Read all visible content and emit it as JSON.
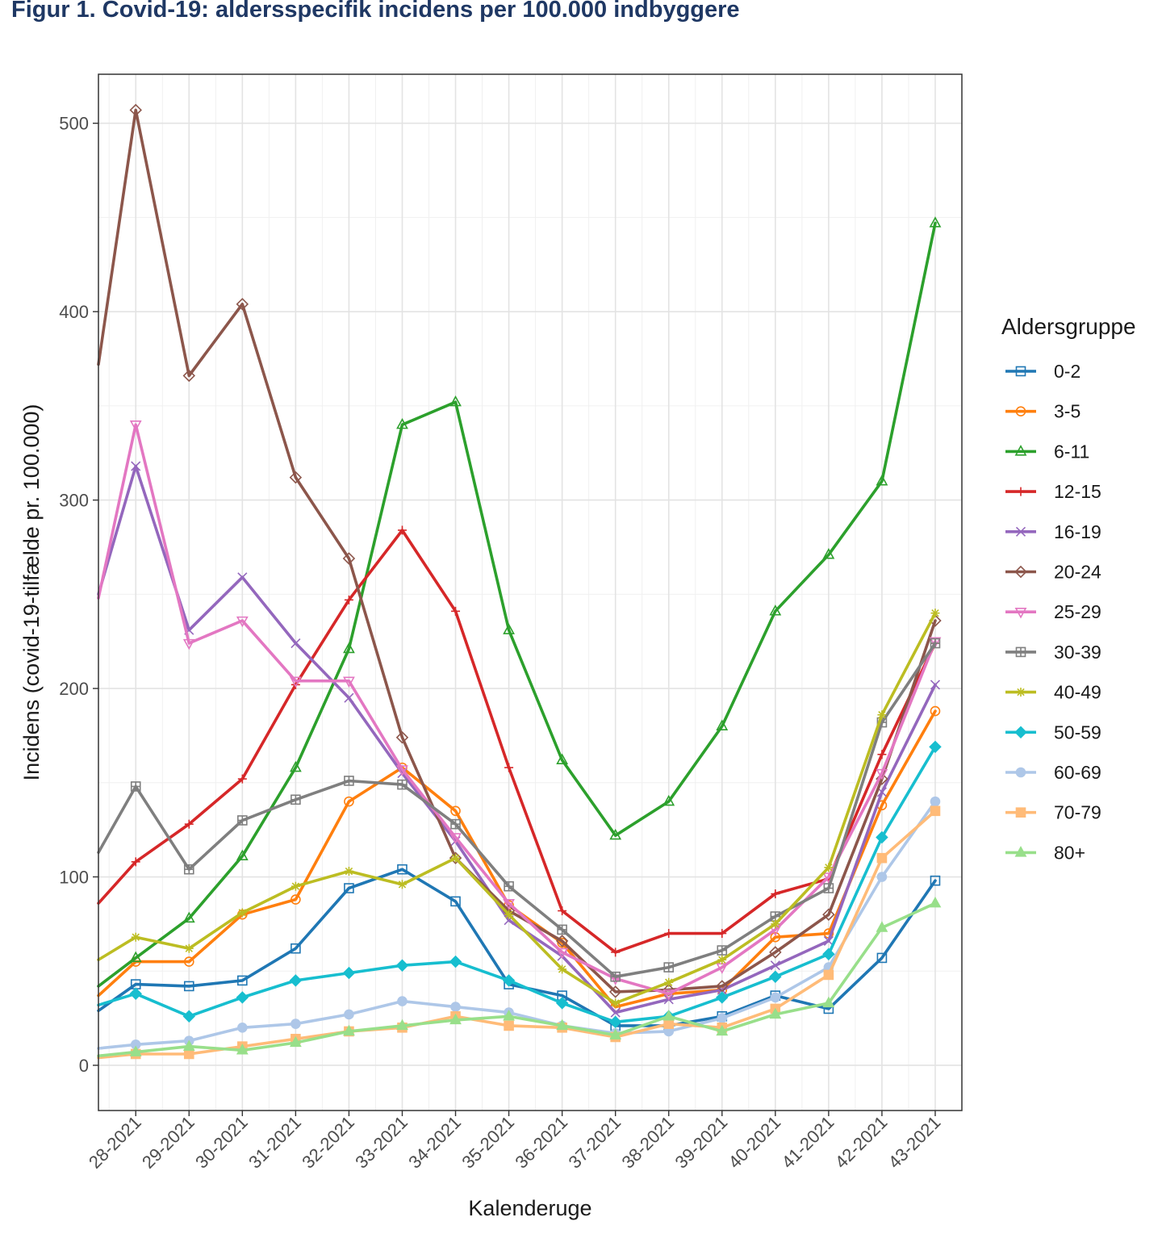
{
  "figure_title": "Figur 1. Covid-19: aldersspecifik incidens per 100.000 indbyggere",
  "chart_data": {
    "type": "line",
    "title": "Figur 1. Covid-19: aldersspecifik incidens per 100.000 indbyggere",
    "xlabel": "Kalenderuge",
    "ylabel": "Incidens (covid-19-tilfælde pr. 100.000)",
    "categories": [
      "28-2021",
      "29-2021",
      "30-2021",
      "31-2021",
      "32-2021",
      "33-2021",
      "34-2021",
      "35-2021",
      "36-2021",
      "37-2021",
      "38-2021",
      "39-2021",
      "40-2021",
      "41-2021",
      "42-2021",
      "43-2021"
    ],
    "x_range": [
      27.3,
      43.5
    ],
    "ylim": [
      -24,
      526
    ],
    "yticks": [
      0,
      100,
      200,
      300,
      400,
      500
    ],
    "grid": true,
    "legend_title": "Aldersgruppe",
    "legend_position": "right",
    "series": [
      {
        "name": "0-2",
        "color": "#1f77b4",
        "marker": "square",
        "start": 29,
        "values": [
          43,
          42,
          45,
          62,
          94,
          104,
          87,
          43,
          37,
          21,
          21,
          26,
          37,
          30,
          57,
          98
        ]
      },
      {
        "name": "3-5",
        "color": "#ff7f0e",
        "marker": "circle",
        "start": 37,
        "values": [
          55,
          55,
          80,
          88,
          140,
          158,
          135,
          85,
          65,
          31,
          38,
          40,
          68,
          70,
          138,
          188
        ]
      },
      {
        "name": "6-11",
        "color": "#2ca02c",
        "marker": "triangle",
        "start": 42,
        "values": [
          57,
          78,
          111,
          158,
          221,
          340,
          352,
          231,
          162,
          122,
          140,
          180,
          241,
          271,
          310,
          447
        ]
      },
      {
        "name": "12-15",
        "color": "#d62728",
        "marker": "plus",
        "start": 86,
        "values": [
          108,
          128,
          152,
          202,
          247,
          284,
          241,
          158,
          82,
          60,
          70,
          70,
          91,
          99,
          165,
          224
        ]
      },
      {
        "name": "16-19",
        "color": "#9467bd",
        "marker": "x",
        "start": 250,
        "values": [
          318,
          231,
          259,
          224,
          195,
          155,
          119,
          77,
          58,
          28,
          35,
          40,
          53,
          66,
          145,
          202
        ]
      },
      {
        "name": "20-24",
        "color": "#8c564b",
        "marker": "diamond",
        "start": 372,
        "values": [
          507,
          366,
          404,
          312,
          269,
          174,
          110,
          82,
          66,
          39,
          40,
          42,
          60,
          80,
          152,
          236
        ]
      },
      {
        "name": "25-29",
        "color": "#e377c2",
        "marker": "triangle-down",
        "start": 248,
        "values": [
          340,
          224,
          236,
          204,
          204,
          157,
          121,
          86,
          60,
          46,
          38,
          52,
          72,
          100,
          155,
          225
        ]
      },
      {
        "name": "30-39",
        "color": "#7f7f7f",
        "marker": "square-plus",
        "start": 113,
        "values": [
          148,
          104,
          130,
          141,
          151,
          149,
          128,
          95,
          72,
          47,
          52,
          61,
          79,
          94,
          182,
          224
        ]
      },
      {
        "name": "40-49",
        "color": "#bcbd22",
        "marker": "asterisk",
        "start": 56,
        "values": [
          68,
          62,
          81,
          95,
          103,
          96,
          110,
          80,
          51,
          33,
          44,
          56,
          75,
          105,
          186,
          240
        ]
      },
      {
        "name": "50-59",
        "color": "#17becf",
        "marker": "diamond-filled",
        "start": 32,
        "values": [
          38,
          26,
          36,
          45,
          49,
          53,
          55,
          45,
          33,
          23,
          26,
          36,
          47,
          59,
          121,
          169
        ]
      },
      {
        "name": "60-69",
        "color": "#aec7e8",
        "marker": "circle-filled",
        "start": 9,
        "values": [
          11,
          13,
          20,
          22,
          27,
          34,
          31,
          28,
          21,
          17,
          18,
          25,
          36,
          52,
          100,
          140
        ]
      },
      {
        "name": "70-79",
        "color": "#ffbb78",
        "marker": "square-filled",
        "start": 4,
        "values": [
          6,
          6,
          10,
          14,
          18,
          20,
          26,
          21,
          20,
          15,
          22,
          20,
          30,
          48,
          110,
          135
        ]
      },
      {
        "name": "80+",
        "color": "#98df8a",
        "marker": "triangle-filled",
        "start": 5,
        "values": [
          7,
          10,
          8,
          12,
          18,
          21,
          24,
          26,
          21,
          16,
          26,
          18,
          27,
          33,
          73,
          86
        ]
      }
    ]
  }
}
